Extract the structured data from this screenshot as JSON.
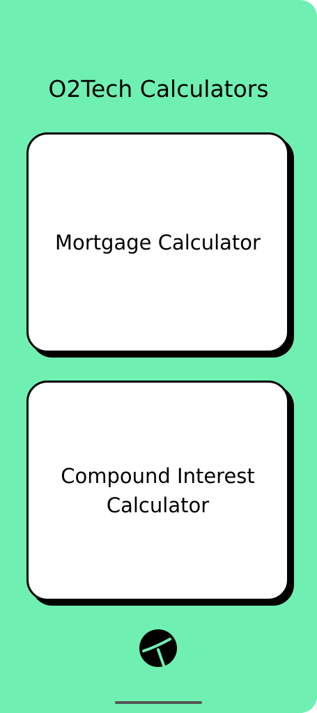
{
  "header": {
    "title": "O2Tech Calculators"
  },
  "cards": [
    {
      "label": "Mortgage Calculator"
    },
    {
      "label": "Compound Interest Calculator"
    }
  ],
  "footer": {
    "logo_icon": "o2tech-logo-icon"
  },
  "colors": {
    "background": "#6ff0b2",
    "card": "#ffffff",
    "border": "#000000"
  }
}
